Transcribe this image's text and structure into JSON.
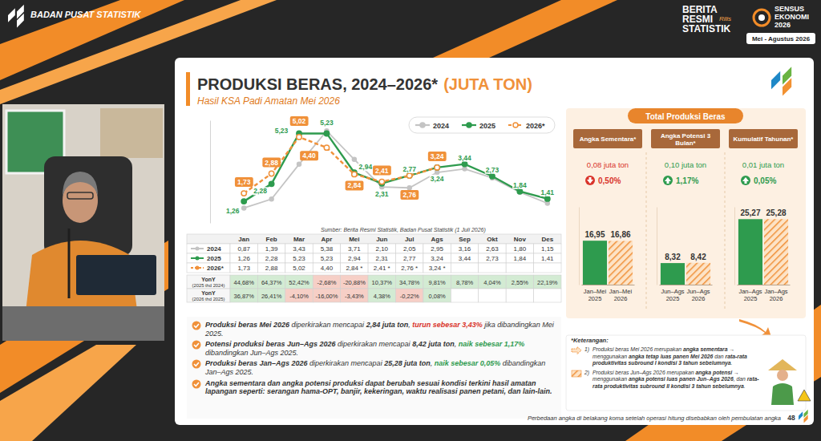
{
  "header": {
    "organization": "BADAN PUSAT STATISTIK",
    "release": [
      "BERITA",
      "RESMI",
      "STATISTIK"
    ],
    "release_tag": "Rilis",
    "census": [
      "SENSUS",
      "EKONOMI",
      "2026"
    ],
    "census_period": "Mei - Agustus 2026"
  },
  "slide": {
    "title": "PRODUKSI BERAS, 2024–2026*",
    "title_unit": "(JUTA TON)",
    "subtitle": "Hasil KSA Padi Amatan Mei 2026",
    "source": "Sumber: Berita Resmi Statistik, Badan Pusat Statistik (1 Juli 2026)",
    "footnote": "Perbedaan angka di belakang koma setelah operasi hitung disebabkan oleh pembulatan angka",
    "page": "48"
  },
  "chart_data": [
    {
      "type": "line",
      "categories": [
        "Jan",
        "Feb",
        "Mar",
        "Apr",
        "Mei",
        "Jun",
        "Jul",
        "Ags",
        "Sep",
        "Okt",
        "Nov",
        "Des"
      ],
      "series": [
        {
          "name": "2024",
          "color": "#c4c4c4",
          "marker": "circle",
          "line_style": "solid",
          "data_labels": false,
          "values": [
            0.87,
            1.39,
            3.43,
            5.38,
            3.71,
            2.1,
            2.05,
            2.95,
            3.16,
            2.63,
            1.8,
            1.15
          ]
        },
        {
          "name": "2025",
          "color": "#2e9b4e",
          "marker": "circle",
          "line_style": "solid",
          "data_labels": true,
          "values": [
            1.26,
            2.28,
            5.23,
            5.23,
            2.94,
            2.31,
            2.77,
            3.24,
            3.44,
            2.73,
            1.84,
            1.41
          ],
          "value_labels": [
            "1,26",
            "2,28",
            "5,23",
            "5,23",
            "2,94",
            "2,31",
            "2,77",
            "3,24",
            "3,44",
            "2,73",
            "1,84",
            "1,41"
          ]
        },
        {
          "name": "2026*",
          "color": "#f0913a",
          "marker": "circle",
          "line_style": "dashed",
          "data_labels": true,
          "values": [
            1.73,
            2.88,
            5.02,
            4.4,
            2.84,
            2.41,
            2.76,
            3.24,
            null,
            null,
            null,
            null
          ],
          "value_labels": [
            "1,73",
            "2,88",
            "5,02",
            "4,40",
            "2,84",
            "2,41",
            "2,76",
            "3,24",
            null,
            null,
            null,
            null
          ]
        }
      ],
      "ylim": [
        0,
        6
      ],
      "yticks": [],
      "tick_labels": false,
      "grid": false,
      "legend": "top-right"
    },
    {
      "type": "bar",
      "title": "Angka Sementara*",
      "categories": [
        "Jan–Mei 2025",
        "Jan–Mei 2026"
      ],
      "values": [
        16.95,
        16.86
      ],
      "value_labels": [
        "16,95",
        "16,86"
      ],
      "colors": [
        "#2e9b4e",
        "#f0913a"
      ],
      "ylim": [
        0,
        30
      ],
      "yticks": [],
      "tick_labels": "x",
      "data_labels": true,
      "grid": false
    },
    {
      "type": "bar",
      "title": "Angka Potensi 3 Bulan*",
      "categories": [
        "Jun–Ags 2025",
        "Jun–Ags 2026"
      ],
      "values": [
        8.32,
        8.42
      ],
      "value_labels": [
        "8,32",
        "8,42"
      ],
      "colors": [
        "#2e9b4e",
        "#f0913a"
      ],
      "ylim": [
        0,
        30
      ],
      "yticks": [],
      "tick_labels": "x",
      "data_labels": true,
      "grid": false
    },
    {
      "type": "bar",
      "title": "Kumulatif Tahunan*",
      "categories": [
        "Jan–Ags 2025",
        "Jan–Ags 2026"
      ],
      "values": [
        25.27,
        25.28
      ],
      "value_labels": [
        "25,27",
        "25,28"
      ],
      "colors": [
        "#2e9b4e",
        "#f0913a"
      ],
      "ylim": [
        0,
        30
      ],
      "yticks": [],
      "tick_labels": "x",
      "data_labels": true,
      "grid": false
    }
  ],
  "table": {
    "rows": [
      {
        "label": "2024",
        "cells": [
          "0,87",
          "1,39",
          "3,43",
          "5,38",
          "3,71",
          "2,10",
          "2,05",
          "2,95",
          "3,16",
          "2,63",
          "1,80",
          "1,15"
        ]
      },
      {
        "label": "2025",
        "cells": [
          "1,26",
          "2,28",
          "5,23",
          "5,23",
          "2,94",
          "2,31",
          "2,77",
          "3,24",
          "3,44",
          "2,73",
          "1,84",
          "1,41"
        ]
      },
      {
        "label": "2026*",
        "cells": [
          "1,73",
          "2,88",
          "5,02",
          "4,40",
          "2,84 *",
          "2,41 *",
          "2,76 *",
          "3,24 *",
          null,
          null,
          null,
          null
        ]
      }
    ],
    "yoy": [
      {
        "label": "YonY",
        "basis": "(2025 thd 2024)",
        "cells": [
          "44,68%",
          "64,37%",
          "52,42%",
          "-2,68%",
          "-20,88%",
          "10,37%",
          "34,78%",
          "9,81%",
          "8,78%",
          "4,04%",
          "2,55%",
          "22,19%"
        ]
      },
      {
        "label": "YonY",
        "basis": "(2026 thd 2025)",
        "cells": [
          "36,87%",
          "26,41%",
          "-4,10%",
          "-16,00%",
          "-3,43%",
          "4,38%",
          "-0,22%",
          "0,08%",
          null,
          null,
          null,
          null
        ]
      }
    ]
  },
  "bullets": [
    {
      "segments": [
        {
          "text": "Produksi beras  Mei 2026",
          "bold": true
        },
        {
          "text": " diperkirakan mencapai "
        },
        {
          "text": "2,84 juta ton",
          "bold": true
        },
        {
          "text": ", "
        },
        {
          "text": "turun sebesar 3,43%",
          "bold": true,
          "color": "#d9342b"
        },
        {
          "text": " jika dibandingkan Mei 2025."
        }
      ]
    },
    {
      "segments": [
        {
          "text": "Potensi produksi beras Jun–Ags 2026",
          "bold": true
        },
        {
          "text": " diperkirakan mencapai "
        },
        {
          "text": "8,42 juta ton",
          "bold": true
        },
        {
          "text": ", "
        },
        {
          "text": "naik sebesar 1,17%",
          "bold": true,
          "color": "#2e9b4e"
        },
        {
          "text": " dibandingkan Jun–Ags 2025."
        }
      ]
    },
    {
      "segments": [
        {
          "text": "Produksi beras  Jan–Ags 2026",
          "bold": true
        },
        {
          "text": " diperkirakan mencapai "
        },
        {
          "text": "25,28 juta ton",
          "bold": true
        },
        {
          "text": ", "
        },
        {
          "text": "naik sebesar 0,05%",
          "bold": true,
          "color": "#2e9b4e"
        },
        {
          "text": " dibandingkan Jan–Ags 2025."
        }
      ]
    },
    {
      "segments": [
        {
          "text": "Angka sementara dan angka potensi produksi dapat berubah sesuai kondisi terkini hasil amatan lapangan seperti: serangan hama-OPT, banjir, kekeringan, waktu realisasi panen petani, dan lain-lain.",
          "bold": true
        }
      ]
    }
  ],
  "panel": {
    "title": "Total Produksi Beras",
    "columns": [
      {
        "change": "0,08 juta ton",
        "direction": "down",
        "percent": "0,50%"
      },
      {
        "change": "0,10 juta ton",
        "direction": "up",
        "percent": "1,17%"
      },
      {
        "change": "0,01 juta ton",
        "direction": "up",
        "percent": "0,05%"
      }
    ]
  },
  "notes": {
    "title": "*Keterangan:",
    "items": [
      {
        "num": "1)",
        "segments": [
          {
            "text": "Produksi beras Mei 2026 merupakan "
          },
          {
            "text": "angka sementara",
            "bold": true
          },
          {
            "text": " → menggunakan "
          },
          {
            "text": "angka tetap luas panen Mei 2026",
            "bold": true
          },
          {
            "text": " dan "
          },
          {
            "text": "rata-rata produktivitas subround I kondisi 3 tahun sebelumnya",
            "bold": true
          },
          {
            "text": "."
          }
        ]
      },
      {
        "num": "2)",
        "segments": [
          {
            "text": "Produksi beras Jun–Ags 2026 merupakan "
          },
          {
            "text": "angka potensi",
            "bold": true
          },
          {
            "text": " → menggunakan "
          },
          {
            "text": "angka potensi luas panen Jun–Ags 2026",
            "bold": true
          },
          {
            "text": ", dan "
          },
          {
            "text": "rata-rata produktivitas subround II kondisi 3 tahun sebelumnya",
            "bold": true
          },
          {
            "text": "."
          }
        ]
      }
    ]
  }
}
